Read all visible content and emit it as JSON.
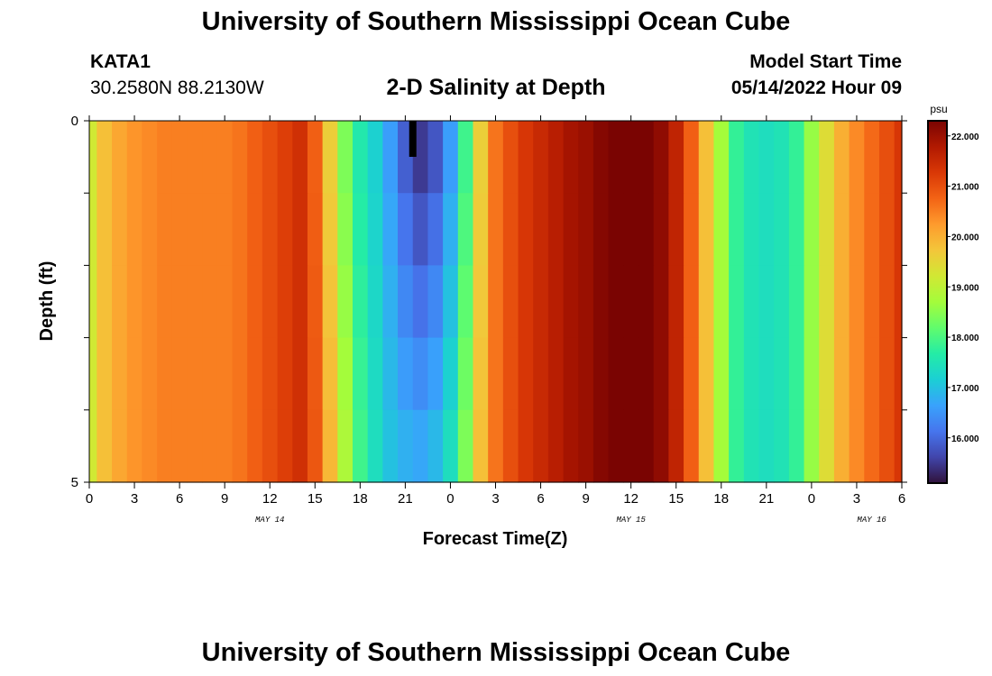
{
  "header": {
    "title": "University of Southern Mississippi Ocean Cube",
    "footer_title": "University of Southern Mississippi Ocean Cube",
    "station_name": "KATA1",
    "station_coords": "30.2580N  88.2130W",
    "plot_title": "2-D Salinity at Depth",
    "model_start_label": "Model Start Time",
    "model_start_value": "05/14/2022 Hour 09"
  },
  "chart_data": {
    "type": "heatmap",
    "title": "2-D Salinity at Depth",
    "xlabel": "Forecast Time(Z)",
    "ylabel": "Depth (ft)",
    "x_ticks": [
      "0",
      "3",
      "6",
      "9",
      "12",
      "15",
      "18",
      "21",
      "0",
      "3",
      "6",
      "9",
      "12",
      "15",
      "18",
      "21",
      "0",
      "3",
      "6"
    ],
    "x_range_hours": [
      0,
      54
    ],
    "date_labels": [
      {
        "label": "MAY 14",
        "hour": 12
      },
      {
        "label": "MAY 15",
        "hour": 36
      },
      {
        "label": "MAY 16",
        "hour": 52
      }
    ],
    "y_ticks": [
      "0",
      "5"
    ],
    "y_range": [
      0,
      5
    ],
    "depth_levels": 5,
    "colorbar": {
      "unit": "psu",
      "min": 15.1,
      "max": 22.3,
      "tick_values": [
        22.0,
        21.0,
        20.0,
        19.0,
        18.0,
        17.0,
        16.0
      ],
      "tick_labels": [
        "22.000",
        "21.000",
        "20.000",
        "19.000",
        "18.000",
        "17.000",
        "16.000"
      ]
    },
    "colormap": [
      "#30123b",
      "#4145ab",
      "#4675ed",
      "#39a2fc",
      "#1bcfd4",
      "#24eca6",
      "#61fc6c",
      "#a4fc3b",
      "#d1e834",
      "#f3c63a",
      "#fe9b2d",
      "#f36315",
      "#d93806",
      "#b11901",
      "#7a0402"
    ],
    "hours": [
      0,
      1,
      2,
      3,
      4,
      5,
      6,
      7,
      8,
      9,
      10,
      11,
      12,
      13,
      14,
      15,
      16,
      17,
      18,
      19,
      20,
      21,
      22,
      23,
      24,
      25,
      26,
      27,
      28,
      29,
      30,
      31,
      32,
      33,
      34,
      35,
      36,
      37,
      38,
      39,
      40,
      41,
      42,
      43,
      44,
      45,
      46,
      47,
      48,
      49,
      50,
      51,
      52,
      53,
      54
    ],
    "surface_salinity": [
      19.2,
      19.8,
      20.1,
      20.3,
      20.4,
      20.5,
      20.5,
      20.5,
      20.5,
      20.5,
      20.6,
      20.8,
      21.0,
      21.2,
      21.4,
      20.8,
      19.6,
      18.4,
      17.6,
      17.2,
      16.6,
      15.9,
      15.5,
      15.8,
      16.6,
      17.9,
      19.6,
      20.6,
      21.0,
      21.3,
      21.5,
      21.7,
      21.9,
      22.0,
      22.2,
      22.3,
      22.3,
      22.3,
      22.1,
      21.6,
      20.8,
      19.8,
      18.7,
      17.8,
      17.5,
      17.4,
      17.5,
      17.8,
      18.6,
      19.4,
      20.0,
      20.4,
      20.7,
      21.0,
      21.3
    ],
    "deep_salinity": [
      19.2,
      19.8,
      20.1,
      20.3,
      20.4,
      20.5,
      20.5,
      20.5,
      20.5,
      20.5,
      20.6,
      20.8,
      21.0,
      21.2,
      21.4,
      20.9,
      19.9,
      18.8,
      17.9,
      17.4,
      17.0,
      16.8,
      16.7,
      16.9,
      17.4,
      18.4,
      19.8,
      20.6,
      21.0,
      21.3,
      21.5,
      21.7,
      21.9,
      22.0,
      22.2,
      22.3,
      22.3,
      22.3,
      22.1,
      21.6,
      20.8,
      19.8,
      18.7,
      17.8,
      17.5,
      17.4,
      17.5,
      17.8,
      18.6,
      19.4,
      20.0,
      20.4,
      20.7,
      21.0,
      21.3
    ],
    "surface_max_marker_hour": 21.5
  }
}
